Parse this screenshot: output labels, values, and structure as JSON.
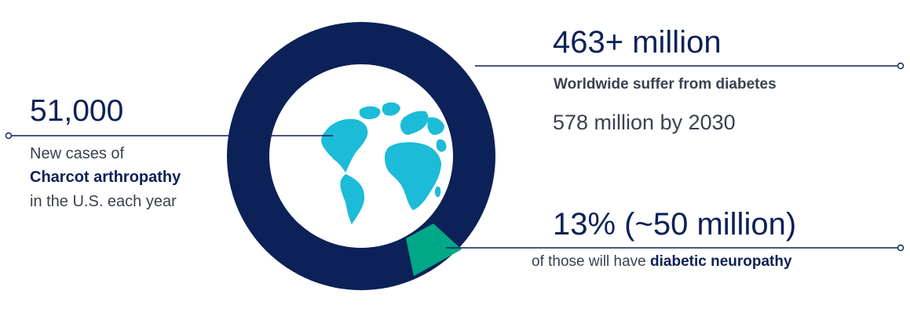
{
  "colors": {
    "ring": "#0b2157",
    "segment": "#00a887",
    "ocean": "#ffffff",
    "land": "#1cbbd8",
    "text_heading": "#0d2157",
    "text_body": "#3b4150",
    "connector": "#0d2157"
  },
  "stats": {
    "left": {
      "number": "51,000",
      "line1": "New cases of",
      "line2": "Charcot arthropathy",
      "line3": "in the U.S. each year"
    },
    "top_right": {
      "number": "463+ million",
      "line1": "Worldwide suffer from diabetes",
      "line2": "578 million by 2030"
    },
    "bottom_right": {
      "number_pct": "13%",
      "number_rest": " (~50 million)",
      "line1_prefix": "of those will have ",
      "line1_bold": "diabetic neuropathy"
    }
  },
  "segment_share": 0.13,
  "globe_icon": "globe-icon"
}
